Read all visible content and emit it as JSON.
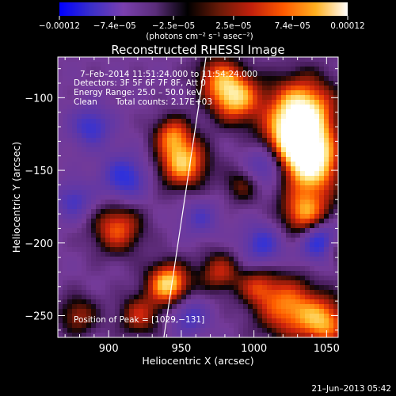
{
  "chart_data": {
    "type": "heatmap",
    "title": "Reconstructed RHESSI Image",
    "xlabel": "Heliocentric X (arcsec)",
    "ylabel": "Heliocentric Y (arcsec)",
    "xlim": [
      865,
      1058
    ],
    "ylim": [
      -265,
      -72
    ],
    "x_ticks": [
      900,
      950,
      1000,
      1050
    ],
    "y_ticks": [
      -100,
      -150,
      -200,
      -250
    ],
    "x_tick_labels": [
      "900",
      "950",
      "1000",
      "1050"
    ],
    "y_tick_labels": [
      "−100",
      "−150",
      "−200",
      "−250"
    ],
    "colorbar": {
      "range": [
        -0.00012,
        0.00012
      ],
      "tick_values": [
        -0.00012,
        -7.4e-05,
        -2.5e-05,
        2.5e-05,
        7.4e-05,
        0.00012
      ],
      "tick_labels": [
        "−0.00012",
        "−7.4e−05",
        "−2.5e−05",
        "2.5e−05",
        "7.4e−05",
        "0.00012"
      ],
      "unit_label": "(photons cm⁻² s⁻¹ asec⁻²)",
      "colors": [
        "#0000ff",
        "#3b2fc9",
        "#7a3fae",
        "#5a2d7a",
        "#000000",
        "#6a1a08",
        "#c2200c",
        "#ff5a00",
        "#ffb020",
        "#ffffff"
      ]
    },
    "annotations": {
      "time_range": "7–Feb–2014 11:51:24.000 to 11:54:24.000",
      "detectors": "Detectors: 3F 5F 6F 7F 8F, Att 0",
      "energy_range": "Energy Range: 25.0 – 50.0 keV",
      "method": "Clean",
      "total_counts": "Total counts: 2.17E+03",
      "peak": "Position of Peak = [1029,−131]"
    },
    "peak_position": [
      1029,
      -131
    ],
    "limb_line": [
      [
        938,
        -265
      ],
      [
        967,
        -72
      ]
    ],
    "hotspots": [
      {
        "x": 1033,
        "y": -108,
        "amp": 1.3,
        "w": 16
      },
      {
        "x": 1029,
        "y": -131,
        "amp": 1.35,
        "w": 15
      },
      {
        "x": 1041,
        "y": -147,
        "amp": 1.1,
        "w": 14
      },
      {
        "x": 1036,
        "y": -180,
        "amp": 1.1,
        "w": 12
      },
      {
        "x": 1023,
        "y": -244,
        "amp": 1.0,
        "w": 15
      },
      {
        "x": 1049,
        "y": -255,
        "amp": 1.0,
        "w": 12
      },
      {
        "x": 975,
        "y": -85,
        "amp": 0.7,
        "w": 11
      },
      {
        "x": 987,
        "y": -100,
        "amp": 1.2,
        "w": 12
      },
      {
        "x": 951,
        "y": -145,
        "amp": 1.2,
        "w": 12
      },
      {
        "x": 944,
        "y": -125,
        "amp": 0.8,
        "w": 9
      },
      {
        "x": 906,
        "y": -190,
        "amp": 0.9,
        "w": 12
      },
      {
        "x": 941,
        "y": -228,
        "amp": 1.3,
        "w": 10
      },
      {
        "x": 921,
        "y": -250,
        "amp": 0.7,
        "w": 10
      },
      {
        "x": 976,
        "y": -220,
        "amp": 0.7,
        "w": 10
      },
      {
        "x": 1002,
        "y": -230,
        "amp": 0.6,
        "w": 9
      },
      {
        "x": 879,
        "y": -250,
        "amp": 0.6,
        "w": 10
      },
      {
        "x": 992,
        "y": -160,
        "amp": 0.5,
        "w": 9
      },
      {
        "x": 1057,
        "y": -205,
        "amp": 0.6,
        "w": 8
      },
      {
        "x": 911,
        "y": -155,
        "amp": -0.8,
        "w": 11
      },
      {
        "x": 888,
        "y": -120,
        "amp": -0.7,
        "w": 10
      },
      {
        "x": 1009,
        "y": -146,
        "amp": -0.8,
        "w": 10
      },
      {
        "x": 1046,
        "y": -199,
        "amp": -1.1,
        "w": 10
      },
      {
        "x": 1006,
        "y": -201,
        "amp": -0.7,
        "w": 10
      },
      {
        "x": 956,
        "y": -251,
        "amp": -0.6,
        "w": 9
      },
      {
        "x": 876,
        "y": -171,
        "amp": -0.6,
        "w": 9
      },
      {
        "x": 963,
        "y": -183,
        "amp": -0.5,
        "w": 9
      }
    ]
  },
  "footer": {
    "timestamp": "21–Jun–2013 05:42"
  }
}
